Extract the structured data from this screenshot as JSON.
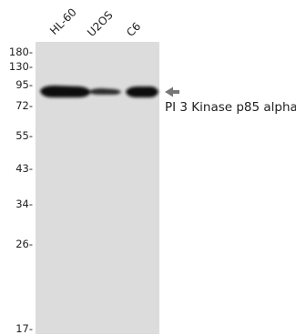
{
  "lanes": [
    {
      "label": "HL-60"
    },
    {
      "label": "U2OS"
    },
    {
      "label": "C6"
    }
  ],
  "markers": [
    "180-",
    "130-",
    "95-",
    "72-",
    "55-",
    "43-",
    "34-",
    "26-",
    "17-"
  ],
  "target": {
    "label": "PI 3 Kinase p85 alpha"
  },
  "colors": {
    "membrane": "#dcdcdc",
    "band": "#111111",
    "arrow": "#777777"
  },
  "bands": [
    {
      "lane": "HL-60",
      "intensity": 1.0
    },
    {
      "lane": "U2OS",
      "intensity": 0.8
    },
    {
      "lane": "C6",
      "intensity": 1.0
    }
  ]
}
